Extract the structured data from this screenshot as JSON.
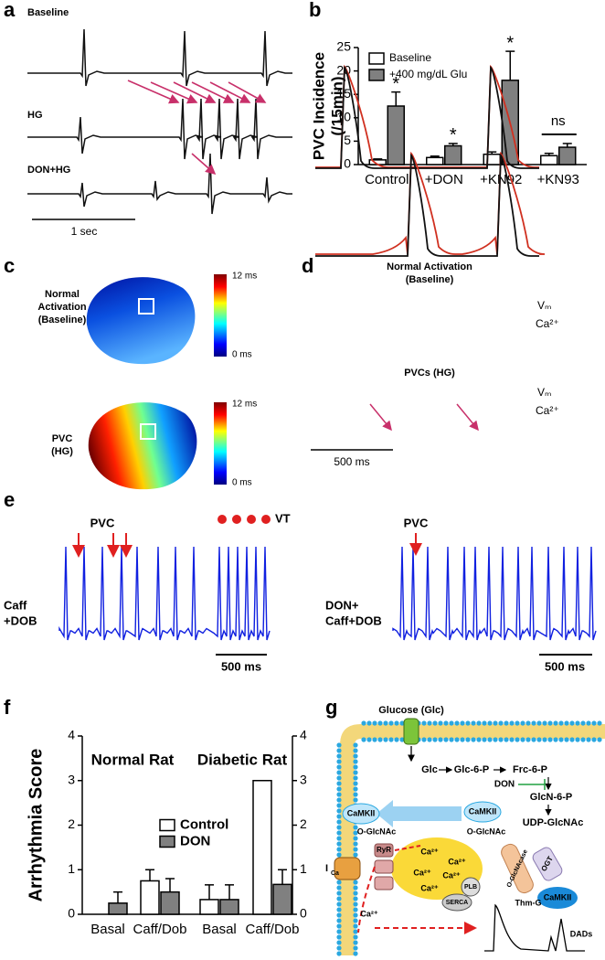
{
  "panel_labels": [
    "a",
    "b",
    "c",
    "d",
    "e",
    "f",
    "g"
  ],
  "panel_a": {
    "labels": [
      "Baseline",
      "HG",
      "DON+HG"
    ],
    "scale_bar": "1 sec"
  },
  "chart_data": [
    {
      "type": "bar",
      "ylabel": [
        "PVC Incidence",
        "(/15min)"
      ],
      "categories": [
        "Control",
        "+DON",
        "+KN92",
        "+KN93"
      ],
      "series": [
        {
          "name": "Baseline",
          "color": "#ffffff",
          "values": [
            1,
            1.5,
            2.2,
            1.9
          ],
          "error": [
            0.2,
            0.3,
            0.5,
            0.5
          ]
        },
        {
          "name": "+400 mg/dL Glu",
          "color": "#808080",
          "values": [
            12.5,
            4,
            18,
            3.7
          ],
          "error": [
            3,
            0.5,
            6.2,
            0.8
          ]
        }
      ],
      "ylim": [
        0,
        25
      ],
      "yticks": [
        0,
        5,
        10,
        15,
        20,
        25
      ],
      "annotations": [
        "*",
        "*",
        "*",
        "ns"
      ],
      "legend": "upper left"
    },
    {
      "type": "bar",
      "ylabel": "Arrhythmia Score",
      "group_titles": [
        "Normal Rat",
        "Diabetic Rat"
      ],
      "categories": [
        "Basal",
        "Caff/Dob",
        "Basal",
        "Caff/Dob"
      ],
      "series": [
        {
          "name": "Control",
          "color": "#ffffff",
          "values": [
            0,
            0.75,
            0.33,
            3
          ],
          "error": [
            0,
            0.25,
            0.33,
            0
          ]
        },
        {
          "name": "DON",
          "color": "#808080",
          "values": [
            0.25,
            0.5,
            0.33,
            0.67
          ],
          "error": [
            0.25,
            0.3,
            0.33,
            0.33
          ]
        }
      ],
      "ylim": [
        0,
        4
      ],
      "yticks": [
        0,
        1,
        2,
        3,
        4
      ],
      "y2lim": [
        0,
        4
      ],
      "y2ticks": [
        0,
        1,
        2,
        3,
        4
      ],
      "legend": "center"
    }
  ],
  "panel_c": {
    "maps": [
      {
        "label": [
          "Normal",
          "Activation",
          "(Baseline)"
        ],
        "colorbar_max": "12 ms",
        "colorbar_min": "0 ms"
      },
      {
        "label": [
          "PVC",
          "(HG)"
        ],
        "colorbar_max": "12 ms",
        "colorbar_min": "0 ms"
      }
    ]
  },
  "panel_d": {
    "titles": [
      "Normal Activation",
      "(Baseline)",
      "PVCs (HG)"
    ],
    "legends": [
      [
        "Vₘ",
        "Ca²⁺"
      ],
      [
        "Vₘ",
        "Ca²⁺"
      ]
    ],
    "scale_bar": "500 ms"
  },
  "panel_e": {
    "left": {
      "annotations": [
        "PVC",
        "VT"
      ],
      "label": [
        "Caff",
        "+DOB"
      ],
      "scale_bar": "500 ms"
    },
    "right": {
      "annotations": [
        "PVC"
      ],
      "label": [
        "DON+",
        "Caff+DOB"
      ],
      "scale_bar": "500 ms"
    }
  },
  "panel_g": {
    "labels": [
      "Glucose (Glc)",
      "Glc",
      "Glc-6-P",
      "Frc-6-P",
      "DON",
      "GlcN-6-P",
      "UDP-GlcNAc",
      "CaMKII",
      "CaMKII",
      "O-GlcNAc",
      "O-GlcNAc",
      "OGT",
      "O-GlcNAcase",
      "Thm-G",
      "CaMKII",
      "RyR",
      "Ca²⁺",
      "Ca²⁺",
      "Ca²⁺",
      "Ca²⁺",
      "Ca²⁺",
      "PLB",
      "SERCA",
      "Ca²⁺",
      "DADs"
    ],
    "current": {
      "base": "I",
      "sub": "Ca"
    }
  }
}
